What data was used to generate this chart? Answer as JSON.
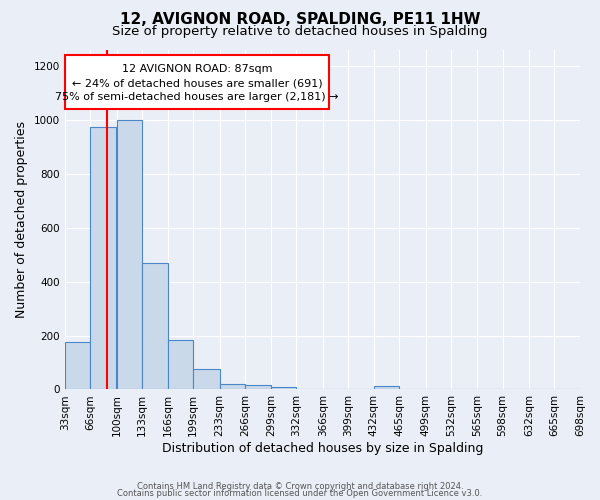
{
  "title": "12, AVIGNON ROAD, SPALDING, PE11 1HW",
  "subtitle": "Size of property relative to detached houses in Spalding",
  "xlabel": "Distribution of detached houses by size in Spalding",
  "ylabel": "Number of detached properties",
  "footer1": "Contains HM Land Registry data © Crown copyright and database right 2024.",
  "footer2": "Contains public sector information licensed under the Open Government Licence v3.0.",
  "annotation_line1": "12 AVIGNON ROAD: 87sqm",
  "annotation_line2": "← 24% of detached houses are smaller (691)",
  "annotation_line3": "75% of semi-detached houses are larger (2,181) →",
  "bar_color": "#c9d9ea",
  "bar_edge_color": "#4a86c8",
  "property_size": 87,
  "bin_edges": [
    33,
    66,
    100,
    133,
    166,
    199,
    233,
    266,
    299,
    332,
    366,
    399,
    432,
    465,
    499,
    532,
    565,
    598,
    632,
    665,
    698
  ],
  "bin_values": [
    175,
    975,
    1000,
    470,
    185,
    75,
    22,
    15,
    10,
    0,
    0,
    0,
    12,
    0,
    0,
    0,
    0,
    0,
    0,
    0
  ],
  "categories": [
    "33sqm",
    "66sqm",
    "100sqm",
    "133sqm",
    "166sqm",
    "199sqm",
    "233sqm",
    "266sqm",
    "299sqm",
    "332sqm",
    "366sqm",
    "399sqm",
    "432sqm",
    "465sqm",
    "499sqm",
    "532sqm",
    "565sqm",
    "598sqm",
    "632sqm",
    "665sqm",
    "698sqm"
  ],
  "ylim": [
    0,
    1260
  ],
  "yticks": [
    0,
    200,
    400,
    600,
    800,
    1000,
    1200
  ],
  "background_color": "#eaeff7",
  "grid_color": "#ffffff",
  "title_fontsize": 11,
  "subtitle_fontsize": 9.5,
  "ylabel_fontsize": 9,
  "xlabel_fontsize": 9,
  "tick_fontsize": 7.5,
  "footer_fontsize": 6.0,
  "annot_fontsize": 8.0
}
